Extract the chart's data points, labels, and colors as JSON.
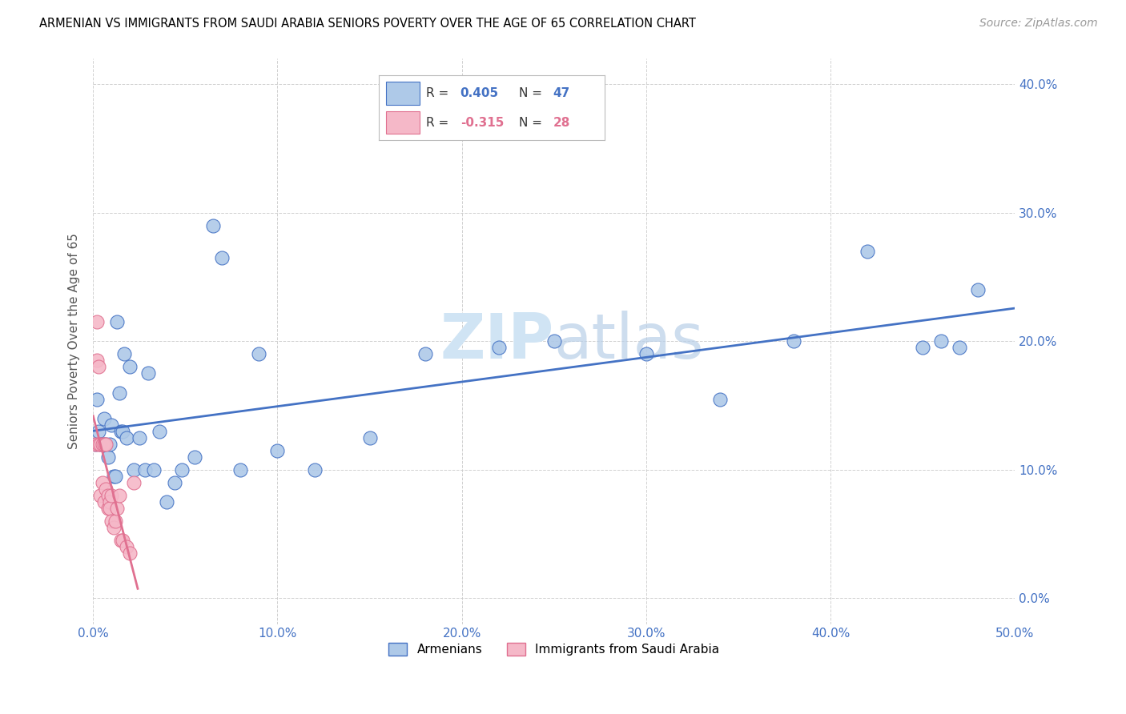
{
  "title": "ARMENIAN VS IMMIGRANTS FROM SAUDI ARABIA SENIORS POVERTY OVER THE AGE OF 65 CORRELATION CHART",
  "source": "Source: ZipAtlas.com",
  "ylabel": "Seniors Poverty Over the Age of 65",
  "xlim": [
    0.0,
    0.5
  ],
  "ylim": [
    -0.02,
    0.42
  ],
  "yticks": [
    0.0,
    0.1,
    0.2,
    0.3,
    0.4
  ],
  "xticks": [
    0.0,
    0.1,
    0.2,
    0.3,
    0.4,
    0.5
  ],
  "r_armenian": 0.405,
  "n_armenian": 47,
  "r_saudi": -0.315,
  "n_saudi": 28,
  "armenian_color": "#aec9e8",
  "saudi_color": "#f5b8c8",
  "line_armenian_color": "#4472c4",
  "line_saudi_color": "#e07090",
  "watermark_color": "#d0e4f4",
  "armenians_x": [
    0.001,
    0.002,
    0.003,
    0.004,
    0.005,
    0.006,
    0.007,
    0.008,
    0.009,
    0.01,
    0.011,
    0.012,
    0.013,
    0.014,
    0.015,
    0.016,
    0.017,
    0.018,
    0.02,
    0.022,
    0.025,
    0.028,
    0.03,
    0.033,
    0.036,
    0.04,
    0.044,
    0.048,
    0.055,
    0.065,
    0.07,
    0.08,
    0.09,
    0.1,
    0.12,
    0.15,
    0.18,
    0.22,
    0.25,
    0.3,
    0.34,
    0.38,
    0.42,
    0.45,
    0.46,
    0.47,
    0.48
  ],
  "armenians_y": [
    0.12,
    0.155,
    0.13,
    0.12,
    0.12,
    0.14,
    0.12,
    0.11,
    0.12,
    0.135,
    0.095,
    0.095,
    0.215,
    0.16,
    0.13,
    0.13,
    0.19,
    0.125,
    0.18,
    0.1,
    0.125,
    0.1,
    0.175,
    0.1,
    0.13,
    0.075,
    0.09,
    0.1,
    0.11,
    0.29,
    0.265,
    0.1,
    0.19,
    0.115,
    0.1,
    0.125,
    0.19,
    0.195,
    0.2,
    0.19,
    0.155,
    0.2,
    0.27,
    0.195,
    0.2,
    0.195,
    0.24
  ],
  "saudi_x": [
    0.001,
    0.002,
    0.002,
    0.003,
    0.003,
    0.004,
    0.004,
    0.005,
    0.005,
    0.006,
    0.006,
    0.007,
    0.007,
    0.008,
    0.008,
    0.009,
    0.009,
    0.01,
    0.01,
    0.011,
    0.012,
    0.013,
    0.014,
    0.015,
    0.016,
    0.018,
    0.02,
    0.022
  ],
  "saudi_y": [
    0.12,
    0.215,
    0.185,
    0.12,
    0.18,
    0.12,
    0.08,
    0.12,
    0.09,
    0.12,
    0.075,
    0.12,
    0.085,
    0.08,
    0.07,
    0.075,
    0.07,
    0.08,
    0.06,
    0.055,
    0.06,
    0.07,
    0.08,
    0.045,
    0.045,
    0.04,
    0.035,
    0.09
  ],
  "background_color": "#ffffff",
  "title_fontsize": 10.5,
  "ylabel_fontsize": 11,
  "tick_fontsize": 11,
  "legend_fontsize": 11,
  "source_fontsize": 10
}
